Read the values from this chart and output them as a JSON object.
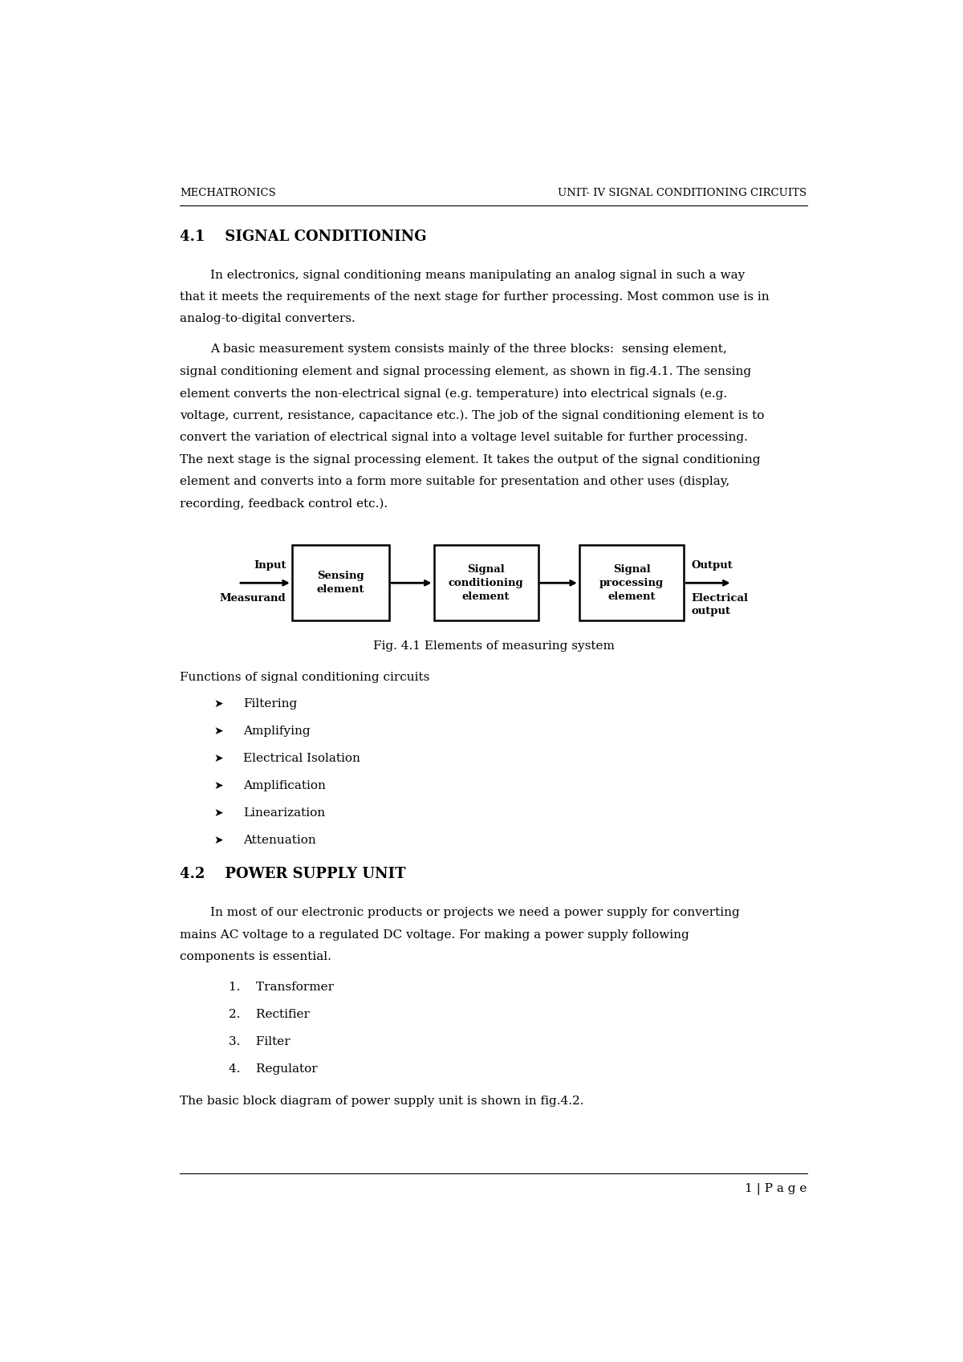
{
  "page_width": 12.0,
  "page_height": 16.97,
  "bg_color": "#ffffff",
  "header_left": "MECHATRONICS",
  "header_right": "UNIT- IV SIGNAL CONDITIONING CIRCUITS",
  "section_4_1_title": "4.1    SIGNAL CONDITIONING",
  "para1_indent": "In electronics, signal conditioning means manipulating an analog signal in such a way",
  "para1_cont": [
    "that it meets the requirements of the next stage for further processing. Most common use is in",
    "analog-to-digital converters."
  ],
  "para2_indent": "A basic measurement system consists mainly of the three blocks:  sensing element,",
  "para2_cont": [
    "signal conditioning element and signal processing element, as shown in fig.4.1. The sensing",
    "element converts the non-electrical signal (e.g. temperature) into electrical signals (e.g.",
    "voltage, current, resistance, capacitance etc.). The job of the signal conditioning element is to",
    "convert the variation of electrical signal into a voltage level suitable for further processing.",
    "The next stage is the signal processing element. It takes the output of the signal conditioning",
    "element and converts into a form more suitable for presentation and other uses (display,",
    "recording, feedback control etc.)."
  ],
  "fig_caption": "Fig. 4.1 Elements of measuring system",
  "functions_title": "Functions of signal conditioning circuits",
  "functions_list": [
    "Filtering",
    "Amplifying",
    "Electrical Isolation",
    "Amplification",
    "Linearization",
    "Attenuation"
  ],
  "section_4_2_title": "4.2    POWER SUPPLY UNIT",
  "para3_indent": "In most of our electronic products or projects we need a power supply for converting",
  "para3_cont": [
    "mains AC voltage to a regulated DC voltage. For making a power supply following",
    "components is essential."
  ],
  "numbered_list": [
    "Transformer",
    "Rectifier",
    "Filter",
    "Regulator"
  ],
  "last_line": "The basic block diagram of power supply unit is shown in fig.4.2.",
  "footer_text": "1 | P a g e",
  "box1_label": "Sensing\nelement",
  "box2_label": "Signal\nconditioning\nelement",
  "box3_label": "Signal\nprocessing\nelement",
  "input_label1": "Input",
  "input_label2": "Measurand",
  "output_label1": "Output",
  "output_label2": "Electrical\noutput"
}
